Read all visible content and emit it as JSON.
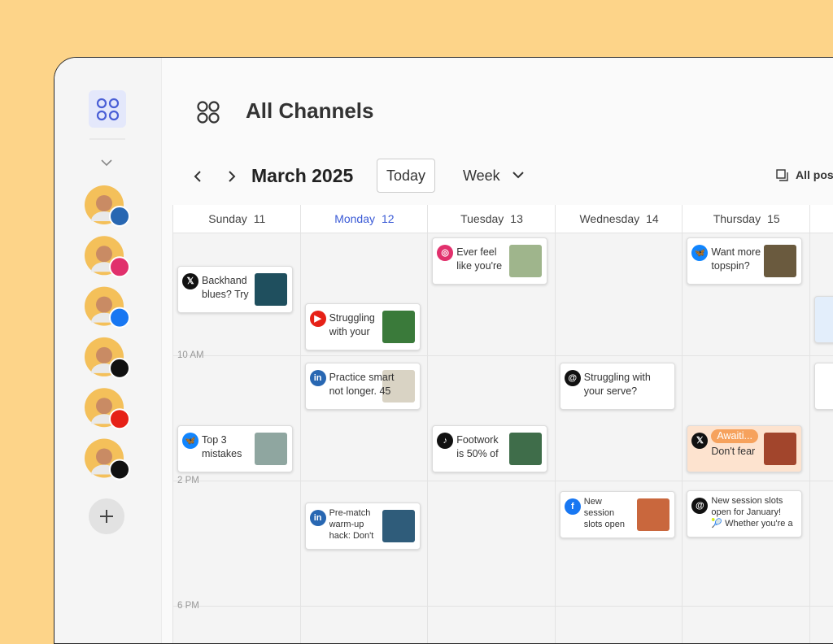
{
  "header": {
    "title": "All Channels"
  },
  "toolbar": {
    "month": "March 2025",
    "today": "Today",
    "view": "Week",
    "filter": "All pos"
  },
  "days": [
    {
      "name": "Sunday",
      "date": 11,
      "posts": [
        {
          "lines": [
            "Backhand",
            "blues? Try"
          ]
        },
        {
          "lines": [
            "Top 3",
            "mistakes"
          ]
        }
      ]
    },
    {
      "name": "Monday",
      "date": 12,
      "posts": [
        {
          "lines": [
            "Struggling",
            "with your"
          ]
        },
        {
          "lines": [
            "Practice smarter,",
            "not longer. 45"
          ]
        },
        {
          "lines": [
            "Pre-match",
            "warm-up",
            "hack: Don't"
          ]
        }
      ]
    },
    {
      "name": "Tuesday",
      "date": 13,
      "posts": [
        {
          "lines": [
            "Ever feel",
            "like you're"
          ]
        },
        {
          "lines": [
            "Footwork",
            "is 50% of"
          ]
        }
      ]
    },
    {
      "name": "Wednesday",
      "date": 14,
      "posts": [
        {
          "lines": [
            "Struggling with",
            "your serve?"
          ]
        },
        {
          "lines": [
            "New",
            "session",
            "slots open"
          ]
        }
      ]
    },
    {
      "name": "Thursday",
      "date": 15,
      "posts": [
        {
          "lines": [
            "Want more",
            "topspin?"
          ]
        },
        {
          "status": "Awaiti...",
          "lines": [
            "Don't fear"
          ]
        },
        {
          "lines": [
            "New session slots",
            "open for January!",
            "🎾 Whether you're a"
          ]
        }
      ]
    }
  ],
  "times": [
    "10 AM",
    "2 PM",
    "6 PM"
  ]
}
